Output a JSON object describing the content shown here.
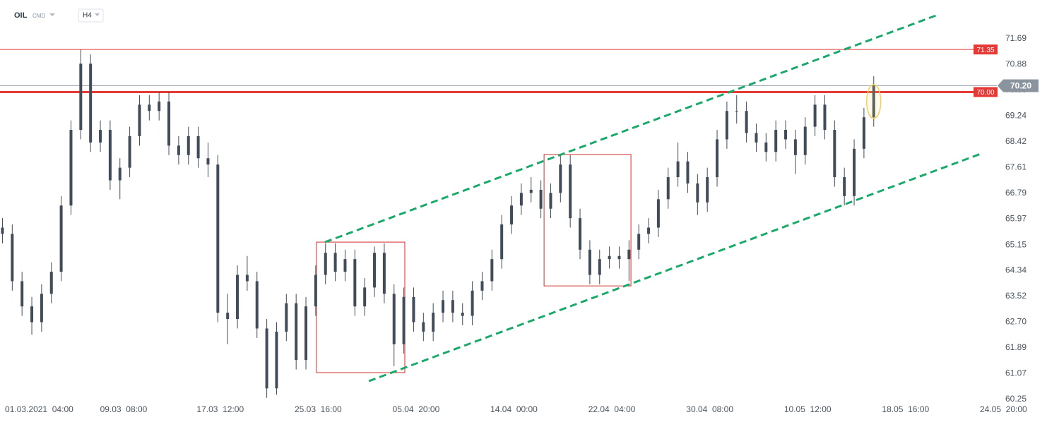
{
  "chart_data": {
    "type": "candlestick",
    "symbol": "OIL",
    "market": "CMD",
    "timeframe": "H4",
    "color": "#414c58",
    "x": [
      1,
      5,
      9,
      13,
      17,
      21,
      25,
      29,
      33,
      37,
      41,
      45,
      49,
      53,
      57,
      61,
      65,
      69,
      73,
      77,
      81,
      85,
      89,
      93,
      97,
      101,
      105,
      109,
      113,
      117,
      121,
      125,
      129,
      133,
      137,
      141,
      145,
      149,
      153,
      157,
      161,
      165,
      169,
      173,
      177,
      181,
      185,
      189,
      193,
      197,
      201,
      205,
      209,
      213,
      217,
      221,
      225,
      229,
      233,
      237,
      241,
      245,
      249,
      253,
      257,
      261,
      265,
      269,
      273,
      277,
      281,
      285,
      289,
      293,
      297,
      301,
      305,
      309,
      313,
      317,
      321,
      325,
      329,
      333,
      337,
      341,
      345,
      349,
      353,
      357
    ],
    "open": [
      65.7,
      65.5,
      64.0,
      63.2,
      62.7,
      63.6,
      64.3,
      66.4,
      68.8,
      70.9,
      68.4,
      68.8,
      67.2,
      67.6,
      68.6,
      69.6,
      69.4,
      69.7,
      68.3,
      68.0,
      68.6,
      67.9,
      67.7,
      63.0,
      62.8,
      64.2,
      64.0,
      62.5,
      60.6,
      62.4,
      63.3,
      61.5,
      63.2,
      64.2,
      64.9,
      64.3,
      64.7,
      63.2,
      63.8,
      64.9,
      63.6,
      62.0,
      63.5,
      62.7,
      62.4,
      63.0,
      63.4,
      63.0,
      62.9,
      63.7,
      64.0,
      64.7,
      65.8,
      66.4,
      66.8,
      66.9,
      66.3,
      66.8,
      67.7,
      66.0,
      65.0,
      64.2,
      64.7,
      64.8,
      64.7,
      65.0,
      65.5,
      65.7,
      66.6,
      67.3,
      67.8,
      67.1,
      66.5,
      67.3,
      68.5,
      69.4,
      69.4,
      68.7,
      68.4,
      68.1,
      68.8,
      68.5,
      68.0,
      68.9,
      69.6,
      68.8,
      67.3,
      66.7,
      68.2,
      69.2
    ],
    "high": [
      66.0,
      65.8,
      64.3,
      63.5,
      63.9,
      64.6,
      66.7,
      69.1,
      71.35,
      71.2,
      69.1,
      69.1,
      67.9,
      68.9,
      69.9,
      69.9,
      70.0,
      70.0,
      68.6,
      68.9,
      68.9,
      68.4,
      68.0,
      63.6,
      64.5,
      64.8,
      64.3,
      62.8,
      62.7,
      63.6,
      63.6,
      63.5,
      64.5,
      65.2,
      65.2,
      65.0,
      65.0,
      64.1,
      65.1,
      65.2,
      63.9,
      63.8,
      63.8,
      63.0,
      63.3,
      63.7,
      63.7,
      63.3,
      64.0,
      64.3,
      65.0,
      66.1,
      66.7,
      67.1,
      67.3,
      67.2,
      67.1,
      68.0,
      68.0,
      66.3,
      65.3,
      65.0,
      65.1,
      65.1,
      65.3,
      65.8,
      66.0,
      66.9,
      67.6,
      68.4,
      68.1,
      67.4,
      67.6,
      68.8,
      69.7,
      69.9,
      69.7,
      69.0,
      68.7,
      69.1,
      69.1,
      68.8,
      69.2,
      69.9,
      69.9,
      69.1,
      67.6,
      68.5,
      69.5,
      70.5
    ],
    "low": [
      65.2,
      63.7,
      62.9,
      62.3,
      62.4,
      63.3,
      64.0,
      66.1,
      68.5,
      68.1,
      68.1,
      66.9,
      66.6,
      67.3,
      68.3,
      69.1,
      69.1,
      68.0,
      67.7,
      67.7,
      67.6,
      67.3,
      62.7,
      62.0,
      62.5,
      63.7,
      62.2,
      60.3,
      60.4,
      62.1,
      61.2,
      61.2,
      62.9,
      63.9,
      64.0,
      64.0,
      62.9,
      62.9,
      63.5,
      63.3,
      61.3,
      61.7,
      62.4,
      62.1,
      62.1,
      62.7,
      62.7,
      62.6,
      62.6,
      63.4,
      63.7,
      64.4,
      65.5,
      66.1,
      66.5,
      66.0,
      66.0,
      66.5,
      65.7,
      64.7,
      63.9,
      63.9,
      64.4,
      64.4,
      64.0,
      64.7,
      65.2,
      65.4,
      66.3,
      67.0,
      66.8,
      66.1,
      66.2,
      67.0,
      68.2,
      69.0,
      68.4,
      68.1,
      67.8,
      67.8,
      68.2,
      67.4,
      67.7,
      68.6,
      68.5,
      67.0,
      66.4,
      66.4,
      67.9,
      68.9
    ],
    "close": [
      65.5,
      64.0,
      63.2,
      62.7,
      63.6,
      64.3,
      66.4,
      68.8,
      70.9,
      68.4,
      68.8,
      67.2,
      67.6,
      68.6,
      69.6,
      69.4,
      69.7,
      68.3,
      68.0,
      68.6,
      67.9,
      67.7,
      63.0,
      62.8,
      64.2,
      64.0,
      62.5,
      60.6,
      62.4,
      63.3,
      61.5,
      63.2,
      64.2,
      64.9,
      64.3,
      64.7,
      63.2,
      63.8,
      64.9,
      63.6,
      62.0,
      63.5,
      62.7,
      62.4,
      63.0,
      63.4,
      63.0,
      62.9,
      63.7,
      64.0,
      64.7,
      65.8,
      66.4,
      66.8,
      66.9,
      66.3,
      66.8,
      67.7,
      66.0,
      65.0,
      64.2,
      64.7,
      64.8,
      64.7,
      65.0,
      65.5,
      65.7,
      66.6,
      67.3,
      67.8,
      67.1,
      66.5,
      67.3,
      68.5,
      69.4,
      69.4,
      68.7,
      68.4,
      68.1,
      68.8,
      68.5,
      68.0,
      68.9,
      69.6,
      68.8,
      67.3,
      66.7,
      68.2,
      69.2,
      70.2
    ],
    "xlim": [
      0,
      420
    ],
    "xticks": [
      {
        "value": 16,
        "label": "01.03.2021  04:00"
      },
      {
        "value": 50.5,
        "label": "09.03  08:00"
      },
      {
        "value": 90,
        "label": "17.03  12:00"
      },
      {
        "value": 130,
        "label": "25.03  16:00"
      },
      {
        "value": 170,
        "label": "05.04  20:00"
      },
      {
        "value": 210,
        "label": "14.04  00:00"
      },
      {
        "value": 250,
        "label": "22.04  04:00"
      },
      {
        "value": 290,
        "label": "30.04  08:00"
      },
      {
        "value": 330,
        "label": "10.05  12:00"
      },
      {
        "value": 370,
        "label": "18.05  16:00"
      },
      {
        "value": 410,
        "label": "24.05  20:00"
      }
    ],
    "ylim": [
      60.16,
      72.92
    ],
    "yticks": [
      71.69,
      70.88,
      70.06,
      69.24,
      68.42,
      67.61,
      66.79,
      65.97,
      65.15,
      64.34,
      63.52,
      {
        "value": 62.7,
        "label": "62.70"
      },
      61.89,
      61.07,
      60.25
    ],
    "levels": [
      {
        "value": 71.35,
        "label": "71.35",
        "color": "#e53935"
      },
      {
        "value": 70,
        "label": "70.00",
        "color": "#e53935"
      }
    ],
    "last_price": {
      "value": 70.2,
      "label": "70.20"
    },
    "channel_color": "#1aa86b",
    "channel_lines": [
      {
        "x": [
          132.8,
          382.5
        ],
        "y": [
          65.24,
          72.43
        ]
      },
      {
        "x": [
          150.7,
          400.7
        ],
        "y": [
          60.83,
          68.04
        ]
      }
    ],
    "box_color": "#d32f2f",
    "boxes": [
      {
        "x": [
          129.3,
          165.4
        ],
        "y": [
          61.1,
          65.24
        ]
      },
      {
        "x": [
          222.3,
          257.8
        ],
        "y": [
          63.85,
          68.02
        ]
      }
    ]
  }
}
